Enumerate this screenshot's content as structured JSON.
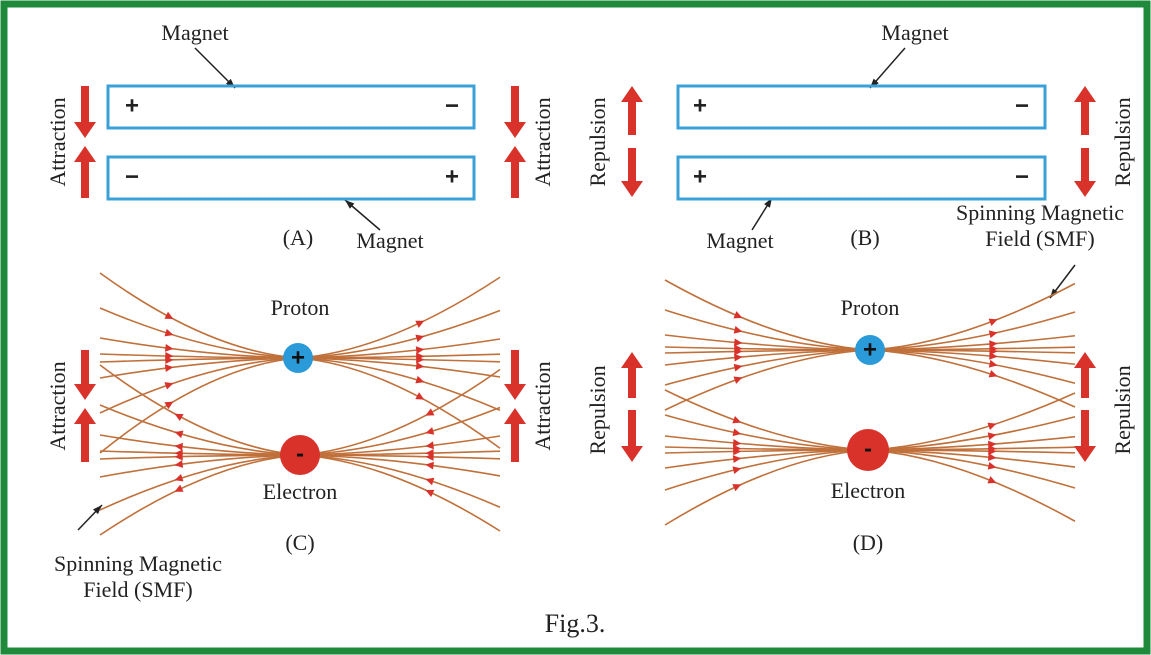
{
  "figure_caption": "Fig.3.",
  "panels": [
    {
      "label": "(A)",
      "magnet_labels": [
        "Magnet",
        "Magnet"
      ],
      "magnets": [
        {
          "left": "+",
          "right": "−"
        },
        {
          "left": "−",
          "right": "+"
        }
      ],
      "side_labels": [
        "Attraction",
        "Attraction"
      ]
    },
    {
      "label": "(B)",
      "magnet_labels": [
        "Magnet",
        "Magnet"
      ],
      "magnets": [
        {
          "left": "+",
          "right": "−"
        },
        {
          "left": "+",
          "right": "−"
        }
      ],
      "side_labels": [
        "Repulsion",
        "Repulsion"
      ],
      "field_label": [
        "Spinning Magnetic",
        "Field (SMF)"
      ]
    },
    {
      "label": "(C)",
      "particles": [
        {
          "name": "Proton",
          "sign": "+"
        },
        {
          "name": "Electron",
          "sign": "-"
        }
      ],
      "side_labels": [
        "Attraction",
        "Attraction"
      ],
      "field_label": [
        "Spinning Magnetic",
        "Field (SMF)"
      ]
    },
    {
      "label": "(D)",
      "particles": [
        {
          "name": "Proton",
          "sign": "+"
        },
        {
          "name": "Electron",
          "sign": "-"
        }
      ],
      "side_labels": [
        "Repulsion",
        "Repulsion"
      ]
    }
  ]
}
